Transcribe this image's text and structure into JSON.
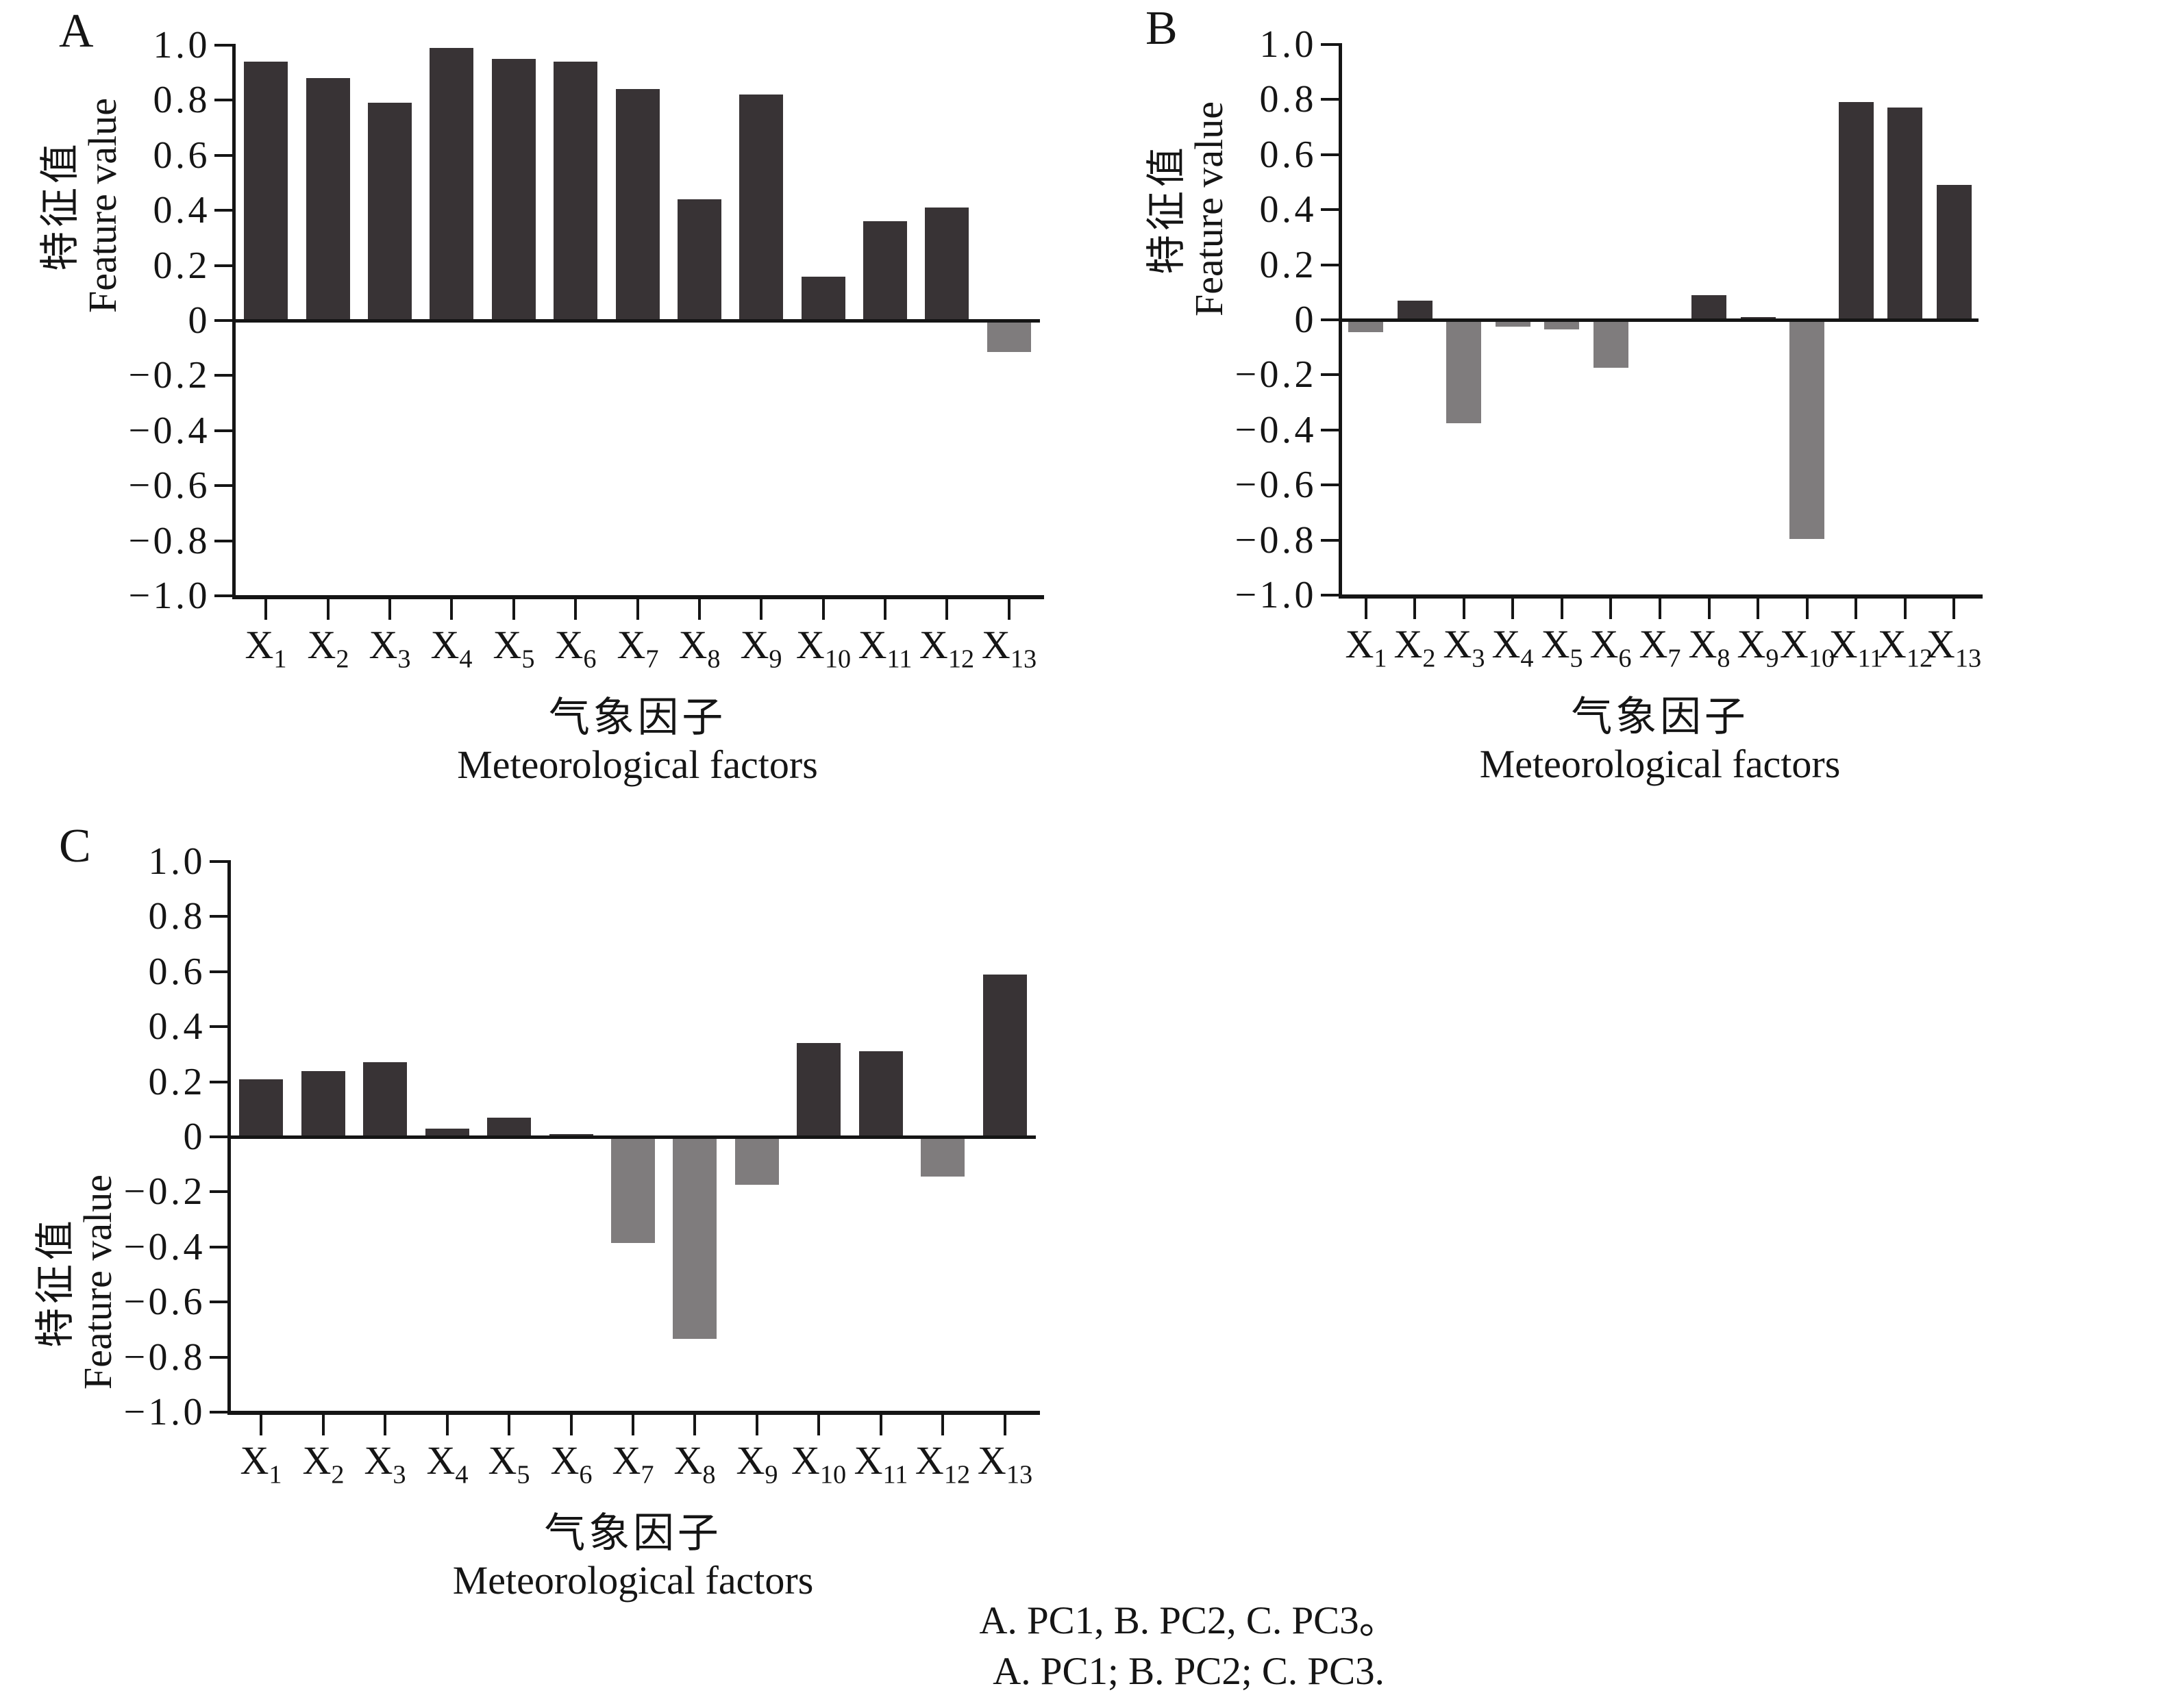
{
  "figure_type": "three-panel bar chart of principal component loadings",
  "colors": {
    "positive_bar": "#383335",
    "negative_bar": "#7f7c7d",
    "axis": "#151515",
    "background": "#ffffff"
  },
  "ylabel": {
    "zh": "特征值",
    "en": "Feature value"
  },
  "xlabel": {
    "zh": "气象因子",
    "en": "Meteorological factors"
  },
  "yticks": [
    "1.0",
    "0.8",
    "0.6",
    "0.4",
    "0.2",
    "0",
    "−0.2",
    "−0.4",
    "−0.6",
    "−0.8",
    "−1.0"
  ],
  "categories": [
    {
      "base": "X",
      "sub": "1"
    },
    {
      "base": "X",
      "sub": "2"
    },
    {
      "base": "X",
      "sub": "3"
    },
    {
      "base": "X",
      "sub": "4"
    },
    {
      "base": "X",
      "sub": "5"
    },
    {
      "base": "X",
      "sub": "6"
    },
    {
      "base": "X",
      "sub": "7"
    },
    {
      "base": "X",
      "sub": "8"
    },
    {
      "base": "X",
      "sub": "9"
    },
    {
      "base": "X",
      "sub": "10"
    },
    {
      "base": "X",
      "sub": "11"
    },
    {
      "base": "X",
      "sub": "12"
    },
    {
      "base": "X",
      "sub": "13"
    }
  ],
  "panels": [
    {
      "label": "A",
      "series": "PC1",
      "values": [
        0.94,
        0.88,
        0.79,
        0.99,
        0.95,
        0.94,
        0.84,
        0.44,
        0.82,
        0.16,
        0.36,
        0.41,
        -0.11
      ]
    },
    {
      "label": "B",
      "series": "PC2",
      "values": [
        -0.04,
        0.07,
        -0.37,
        -0.02,
        -0.03,
        -0.17,
        0.0,
        0.09,
        0.01,
        -0.79,
        0.79,
        0.77,
        0.49
      ]
    },
    {
      "label": "C",
      "series": "PC3",
      "values": [
        0.21,
        0.24,
        0.27,
        0.03,
        0.07,
        0.01,
        -0.38,
        -0.73,
        -0.17,
        0.34,
        0.31,
        -0.14,
        0.59
      ]
    }
  ],
  "caption": {
    "line1": "A. PC1, B. PC2, C. PC3。",
    "line2": "A. PC1; B. PC2; C. PC3."
  },
  "chart_data": [
    {
      "type": "bar",
      "panel": "A",
      "title": "PC1 loadings",
      "categories": [
        "X1",
        "X2",
        "X3",
        "X4",
        "X5",
        "X6",
        "X7",
        "X8",
        "X9",
        "X10",
        "X11",
        "X12",
        "X13"
      ],
      "values": [
        0.94,
        0.88,
        0.79,
        0.99,
        0.95,
        0.94,
        0.84,
        0.44,
        0.82,
        0.16,
        0.36,
        0.41,
        -0.11
      ],
      "xlabel": "气象因子 Meteorological factors",
      "ylabel": "特征值 Feature value",
      "ylim": [
        -1.0,
        1.0
      ],
      "ytick_step": 0.2,
      "grid": false,
      "legend": "none",
      "bar_color_positive": "#383335",
      "bar_color_negative": "#7f7c7d"
    },
    {
      "type": "bar",
      "panel": "B",
      "title": "PC2 loadings",
      "categories": [
        "X1",
        "X2",
        "X3",
        "X4",
        "X5",
        "X6",
        "X7",
        "X8",
        "X9",
        "X10",
        "X11",
        "X12",
        "X13"
      ],
      "values": [
        -0.04,
        0.07,
        -0.37,
        -0.02,
        -0.03,
        -0.17,
        0.0,
        0.09,
        0.01,
        -0.79,
        0.79,
        0.77,
        0.49
      ],
      "xlabel": "气象因子 Meteorological factors",
      "ylabel": "特征值 Feature value",
      "ylim": [
        -1.0,
        1.0
      ],
      "ytick_step": 0.2,
      "grid": false,
      "legend": "none",
      "bar_color_positive": "#383335",
      "bar_color_negative": "#7f7c7d"
    },
    {
      "type": "bar",
      "panel": "C",
      "title": "PC3 loadings",
      "categories": [
        "X1",
        "X2",
        "X3",
        "X4",
        "X5",
        "X6",
        "X7",
        "X8",
        "X9",
        "X10",
        "X11",
        "X12",
        "X13"
      ],
      "values": [
        0.21,
        0.24,
        0.27,
        0.03,
        0.07,
        0.01,
        -0.38,
        -0.73,
        -0.17,
        0.34,
        0.31,
        -0.14,
        0.59
      ],
      "xlabel": "气象因子 Meteorological factors",
      "ylabel": "特征值 Feature value",
      "ylim": [
        -1.0,
        1.0
      ],
      "ytick_step": 0.2,
      "grid": false,
      "legend": "none",
      "bar_color_positive": "#383335",
      "bar_color_negative": "#7f7c7d"
    }
  ]
}
